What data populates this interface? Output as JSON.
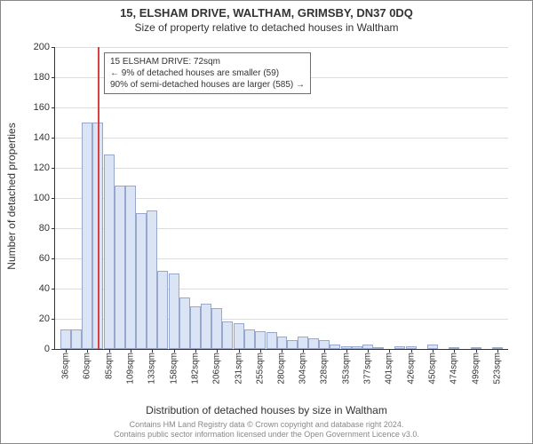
{
  "title": "15, ELSHAM DRIVE, WALTHAM, GRIMSBY, DN37 0DQ",
  "subtitle": "Size of property relative to detached houses in Waltham",
  "chart": {
    "type": "bar",
    "y_axis_label": "Number of detached properties",
    "x_axis_label": "Distribution of detached houses by size in Waltham",
    "ylim": [
      0,
      200
    ],
    "ytick_step": 20,
    "background_color": "#ffffff",
    "grid_color": "#dddddd",
    "bar_fill": "#dbe4f5",
    "bar_stroke": "#97a8cc",
    "marker_color": "#d94040",
    "marker_x_value": 72,
    "x_tick_labels": [
      "36sqm",
      "60sqm",
      "85sqm",
      "109sqm",
      "133sqm",
      "158sqm",
      "182sqm",
      "206sqm",
      "231sqm",
      "255sqm",
      "280sqm",
      "304sqm",
      "328sqm",
      "353sqm",
      "377sqm",
      "401sqm",
      "426sqm",
      "450sqm",
      "474sqm",
      "499sqm",
      "523sqm"
    ],
    "x_tick_positions": [
      36,
      60,
      85,
      109,
      133,
      158,
      182,
      206,
      231,
      255,
      280,
      304,
      328,
      353,
      377,
      401,
      426,
      450,
      474,
      499,
      523
    ],
    "x_range": [
      24,
      535
    ],
    "bars": [
      {
        "x": 36,
        "h": 13
      },
      {
        "x": 48,
        "h": 13
      },
      {
        "x": 60,
        "h": 150
      },
      {
        "x": 72,
        "h": 150
      },
      {
        "x": 85,
        "h": 129
      },
      {
        "x": 97,
        "h": 108
      },
      {
        "x": 109,
        "h": 108
      },
      {
        "x": 121,
        "h": 90
      },
      {
        "x": 133,
        "h": 92
      },
      {
        "x": 145,
        "h": 52
      },
      {
        "x": 158,
        "h": 50
      },
      {
        "x": 170,
        "h": 34
      },
      {
        "x": 182,
        "h": 28
      },
      {
        "x": 194,
        "h": 30
      },
      {
        "x": 206,
        "h": 27
      },
      {
        "x": 218,
        "h": 18
      },
      {
        "x": 231,
        "h": 17
      },
      {
        "x": 243,
        "h": 13
      },
      {
        "x": 255,
        "h": 12
      },
      {
        "x": 268,
        "h": 11
      },
      {
        "x": 280,
        "h": 8
      },
      {
        "x": 292,
        "h": 6
      },
      {
        "x": 304,
        "h": 8
      },
      {
        "x": 316,
        "h": 7
      },
      {
        "x": 328,
        "h": 6
      },
      {
        "x": 340,
        "h": 3
      },
      {
        "x": 353,
        "h": 2
      },
      {
        "x": 365,
        "h": 2
      },
      {
        "x": 377,
        "h": 3
      },
      {
        "x": 389,
        "h": 1
      },
      {
        "x": 401,
        "h": 0
      },
      {
        "x": 413,
        "h": 2
      },
      {
        "x": 426,
        "h": 2
      },
      {
        "x": 438,
        "h": 0
      },
      {
        "x": 450,
        "h": 3
      },
      {
        "x": 462,
        "h": 0
      },
      {
        "x": 474,
        "h": 1
      },
      {
        "x": 486,
        "h": 0
      },
      {
        "x": 499,
        "h": 1
      },
      {
        "x": 511,
        "h": 0
      },
      {
        "x": 523,
        "h": 1
      }
    ],
    "callout": {
      "line1": "15 ELSHAM DRIVE: 72sqm",
      "line2": "← 9% of detached houses are smaller (59)",
      "line3": "90% of semi-detached houses are larger (585) →"
    }
  },
  "attribution": {
    "line1": "Contains HM Land Registry data © Crown copyright and database right 2024.",
    "line2": "Contains public sector information licensed under the Open Government Licence v3.0."
  }
}
